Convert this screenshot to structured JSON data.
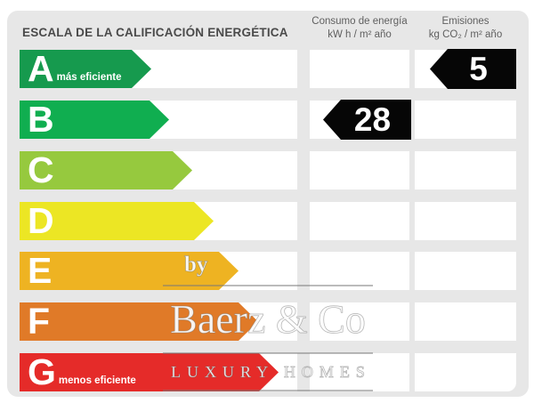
{
  "header": {
    "title": "ESCALA DE LA CALIFICACIÓN ENERGÉTICA",
    "consumo_col": {
      "line1": "Consumo de energía",
      "line2": "kW h / m² año"
    },
    "emisiones_col": {
      "line1": "Emisiones",
      "line2": "kg CO₂ / m² año"
    }
  },
  "scale": {
    "ratings": [
      {
        "letter": "A",
        "label": "más eficiente",
        "color": "#169a4e"
      },
      {
        "letter": "B",
        "label": "",
        "color": "#10ae50"
      },
      {
        "letter": "C",
        "label": "",
        "color": "#96c93e"
      },
      {
        "letter": "D",
        "label": "",
        "color": "#ece624"
      },
      {
        "letter": "E",
        "label": "",
        "color": "#eeb322"
      },
      {
        "letter": "F",
        "label": "",
        "color": "#e07a28"
      },
      {
        "letter": "G",
        "label": "menos eficiente",
        "color": "#e52b29"
      }
    ]
  },
  "values": {
    "consumo": {
      "value": "28",
      "rating_row": "B",
      "badge_color": "#060606"
    },
    "emisiones": {
      "value": "5",
      "rating_row": "A",
      "badge_color": "#060606"
    }
  },
  "watermark": {
    "by": "by",
    "name": "Baerz & Co",
    "tagline": "LUXURY HOMES"
  },
  "colors": {
    "panel_background": "#e7e7e7",
    "cell_background": "#ffffff",
    "title_text": "#4a4a4a"
  }
}
